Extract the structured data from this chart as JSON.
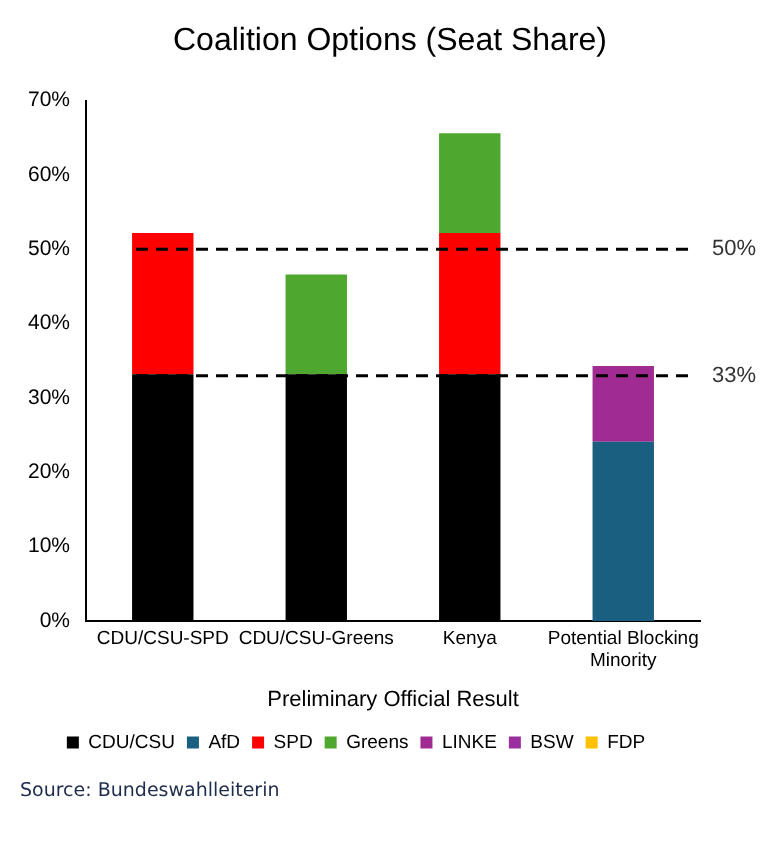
{
  "chart_data": {
    "type": "bar",
    "title": "Coalition Options (Seat Share)",
    "xlabel": "Preliminary Official Result",
    "stacked": true,
    "categories": [
      "CDU/CSU-SPD",
      "CDU/CSU-Greens",
      "Kenya",
      "Potential Blocking Minority"
    ],
    "series": [
      {
        "name": "CDU/CSU",
        "color": "#000000",
        "values": [
          33.2,
          33.2,
          33.2,
          null
        ]
      },
      {
        "name": "AfD",
        "color": "#1a5e80",
        "values": [
          null,
          null,
          null,
          24.1
        ]
      },
      {
        "name": "SPD",
        "color": "#ff0000",
        "values": [
          19.0,
          null,
          19.0,
          null
        ]
      },
      {
        "name": "Greens",
        "color": "#4ea72e",
        "values": [
          null,
          13.4,
          13.4,
          null
        ]
      },
      {
        "name": "LINKE",
        "color": "#a02b93",
        "values": [
          null,
          null,
          null,
          10.2
        ]
      },
      {
        "name": "BSW",
        "color": "#9b2fa0",
        "values": [
          null,
          null,
          null,
          null
        ]
      },
      {
        "name": "FDP",
        "color": "#ffc000",
        "values": [
          null,
          null,
          null,
          null
        ]
      }
    ],
    "ylim": [
      0,
      70
    ],
    "yticks": [
      {
        "value": 0,
        "label": "0%"
      },
      {
        "value": 10,
        "label": "10%"
      },
      {
        "value": 20,
        "label": "20%"
      },
      {
        "value": 30,
        "label": "30%"
      },
      {
        "value": 40,
        "label": "40%"
      },
      {
        "value": 50,
        "label": "50%"
      },
      {
        "value": 60,
        "label": "60%"
      },
      {
        "value": 70,
        "label": "70%"
      }
    ],
    "ref_lines": [
      {
        "axis": "y",
        "value": 50,
        "label": "50%",
        "color": "#000000",
        "line_style": "dashed"
      },
      {
        "axis": "y",
        "value": 33,
        "label": "33%",
        "color": "#000000",
        "line_style": "dashed"
      }
    ],
    "grid": false,
    "legend": "bottom",
    "annotations": [
      "Source: Bundeswahlleiterin"
    ]
  }
}
